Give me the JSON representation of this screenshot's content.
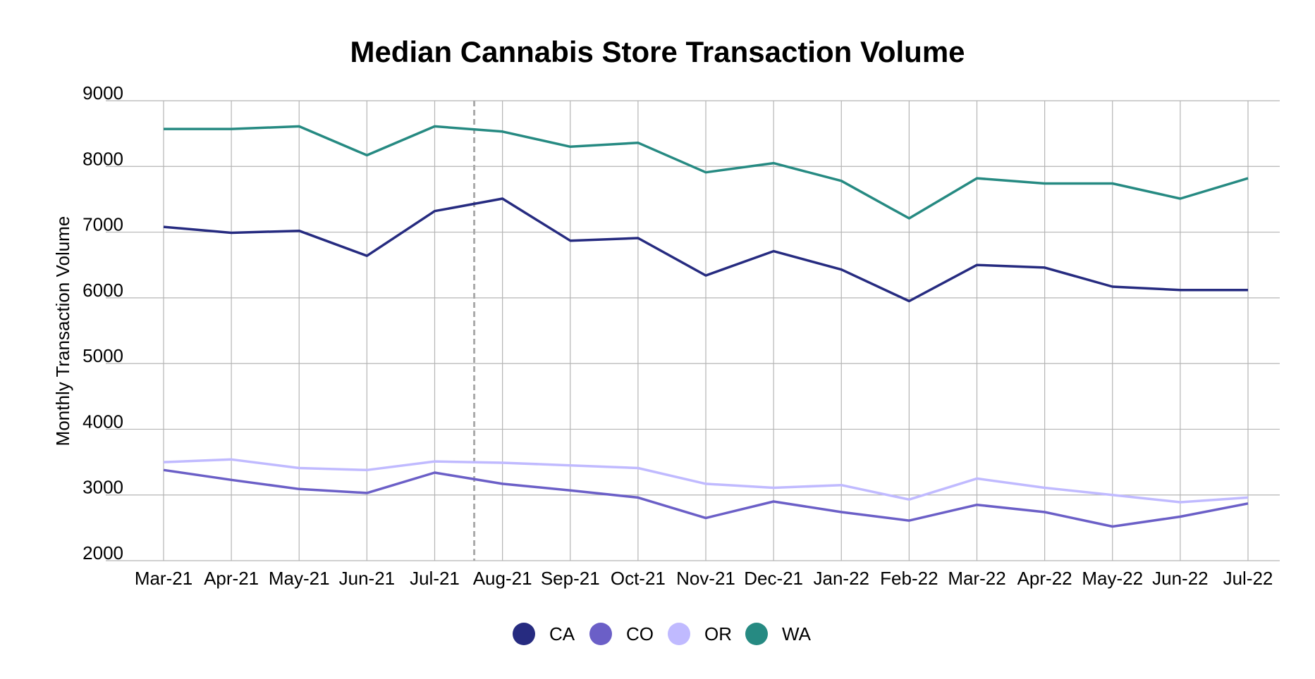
{
  "chart_data": {
    "type": "line",
    "title": "Median Cannabis Store Transaction Volume",
    "xlabel": "",
    "ylabel": "Monthly Transaction Volume",
    "categories": [
      "Mar-21",
      "Apr-21",
      "May-21",
      "Jun-21",
      "Jul-21",
      "Aug-21",
      "Sep-21",
      "Oct-21",
      "Nov-21",
      "Dec-21",
      "Jan-22",
      "Feb-22",
      "Mar-22",
      "Apr-22",
      "May-22",
      "Jun-22",
      "Jul-22"
    ],
    "ylim": [
      2000,
      9000
    ],
    "yticks": [
      2000,
      3000,
      4000,
      5000,
      6000,
      7000,
      8000,
      9000
    ],
    "grid": true,
    "legend_position": "bottom-center",
    "reference_line": {
      "style": "dashed",
      "color": "#aaaaaa",
      "position_between": [
        "Jul-21",
        "Aug-21"
      ]
    },
    "series": [
      {
        "name": "CA",
        "color": "#262b80",
        "values": [
          7080,
          6990,
          7020,
          6640,
          7320,
          7510,
          6870,
          6910,
          6340,
          6710,
          6430,
          5950,
          6500,
          6460,
          6170,
          6120,
          6120
        ]
      },
      {
        "name": "CO",
        "color": "#6b5fc7",
        "values": [
          3380,
          3230,
          3090,
          3030,
          3340,
          3170,
          3070,
          2960,
          2650,
          2900,
          2740,
          2610,
          2850,
          2740,
          2520,
          2670,
          2870
        ]
      },
      {
        "name": "OR",
        "color": "#c0baff",
        "values": [
          3500,
          3540,
          3410,
          3380,
          3510,
          3490,
          3450,
          3410,
          3170,
          3110,
          3150,
          2930,
          3250,
          3110,
          3000,
          2890,
          2960
        ]
      },
      {
        "name": "WA",
        "color": "#268a82",
        "values": [
          8570,
          8570,
          8610,
          8170,
          8610,
          8530,
          8300,
          8360,
          7910,
          8050,
          7780,
          7210,
          7820,
          7740,
          7740,
          7510,
          7820
        ]
      }
    ]
  }
}
